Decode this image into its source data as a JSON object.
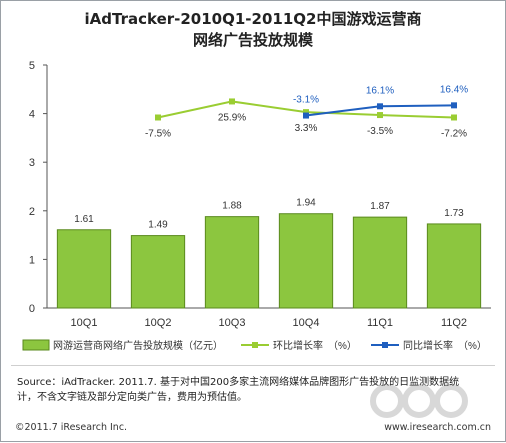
{
  "title_line1": "iAdTracker-2010Q1-2011Q2中国游戏运营商",
  "title_line2": "网络广告投放规模",
  "colors": {
    "bar": "#8cc63f",
    "bar_stroke": "#5a8a1e",
    "qoq_line": "#9acd32",
    "yoy_line": "#1f5fbf",
    "axis": "#555555",
    "grid": "#d9d9d9"
  },
  "chart_data": {
    "type": "bar",
    "categories": [
      "10Q1",
      "10Q2",
      "10Q3",
      "10Q4",
      "11Q1",
      "11Q2"
    ],
    "ylim": [
      0,
      5
    ],
    "yticks": [
      0,
      1,
      2,
      3,
      4,
      5
    ],
    "series": [
      {
        "name": "网游运营商网络广告投放规模（亿元）",
        "kind": "bar",
        "values": [
          1.61,
          1.49,
          1.88,
          1.94,
          1.87,
          1.73
        ],
        "labels": [
          "1.61",
          "1.49",
          "1.88",
          "1.94",
          "1.87",
          "1.73"
        ]
      },
      {
        "name": "环比增长率（%）",
        "kind": "line",
        "plot_values": [
          null,
          3.92,
          4.25,
          4.03,
          3.97,
          3.92
        ],
        "labels": [
          null,
          "-7.5%",
          "25.9%",
          "3.3%",
          "-3.5%",
          "-7.2%"
        ]
      },
      {
        "name": "同比增长率（%）",
        "kind": "line",
        "plot_values": [
          null,
          null,
          null,
          3.96,
          4.15,
          4.17
        ],
        "labels": [
          null,
          null,
          null,
          "-3.1%",
          "16.1%",
          "16.4%"
        ]
      }
    ]
  },
  "legend": {
    "bar_label": "网游运营商网络广告投放规模（亿元）",
    "qoq_label": "环比增长率　（%）",
    "yoy_label": "同比增长率　（%）"
  },
  "source": {
    "line1": "Source：iAdTracker. 2011.7. 基于对中国200多家主流网络媒体品牌图形广告投放的日监测数据统",
    "line2": "计，不含文字链及部分定向类广告，费用为预估值。"
  },
  "footer": {
    "copyright": "©2011.7 iResearch Inc.",
    "website": "www.iresearch.com.cn"
  }
}
